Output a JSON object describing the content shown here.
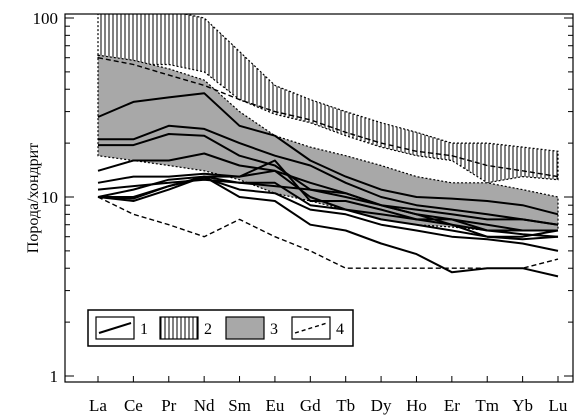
{
  "chart_data": {
    "type": "line",
    "ylabel": "Порода/хондрит",
    "x_categories": [
      "La",
      "Ce",
      "Pr",
      "Nd",
      "Sm",
      "Eu",
      "Gd",
      "Tb",
      "Dy",
      "Ho",
      "Er",
      "Tm",
      "Yb",
      "Lu"
    ],
    "y_scale": "log",
    "ylim": [
      1,
      100
    ],
    "y_ticks": [
      "1",
      "10",
      "100"
    ],
    "series": [
      {
        "legend_key": "1",
        "style": "solid",
        "values": [
          28,
          34,
          36,
          38,
          25,
          22,
          16,
          13,
          11,
          10,
          9.8,
          9.5,
          9,
          8
        ]
      },
      {
        "legend_key": "1",
        "style": "solid",
        "values": [
          21,
          21,
          25,
          24,
          20,
          17,
          15,
          12,
          10,
          9,
          8.5,
          8,
          7.5,
          7
        ]
      },
      {
        "legend_key": "1",
        "style": "solid",
        "values": [
          19.5,
          19.5,
          22.5,
          22,
          17,
          15,
          11,
          10,
          9,
          8.5,
          8,
          7.5,
          7.5,
          7
        ]
      },
      {
        "legend_key": "1",
        "style": "solid",
        "values": [
          14,
          16,
          16,
          17.5,
          15,
          14,
          12,
          10.5,
          9,
          8,
          7.5,
          7,
          6.5,
          6.5
        ]
      },
      {
        "legend_key": "1",
        "style": "solid",
        "values": [
          12,
          13,
          13,
          13.5,
          13,
          14,
          10,
          8.5,
          8,
          7.5,
          7.5,
          6.5,
          6.5,
          6.5
        ]
      },
      {
        "legend_key": "1",
        "style": "solid",
        "values": [
          11,
          11.5,
          12,
          12.5,
          12,
          11.5,
          11,
          10.5,
          9,
          8,
          7,
          6.5,
          6.2,
          6
        ]
      },
      {
        "legend_key": "1",
        "style": "solid",
        "values": [
          10,
          11,
          12.5,
          13,
          13,
          16,
          9.5,
          9.5,
          8.5,
          7.5,
          7,
          6,
          6,
          6.5
        ]
      },
      {
        "legend_key": "1",
        "style": "solid",
        "values": [
          10,
          10,
          11.5,
          13,
          12,
          12,
          9,
          8.5,
          7.5,
          7,
          6.5,
          6,
          5.8,
          6
        ]
      },
      {
        "legend_key": "1",
        "style": "solid",
        "values": [
          10,
          9.8,
          11.5,
          12.8,
          11,
          10.5,
          8.5,
          8,
          7,
          6.5,
          6,
          5.8,
          5.5,
          5
        ]
      },
      {
        "legend_key": "1",
        "style": "solid",
        "values": [
          10,
          9.5,
          11,
          13,
          10,
          9.5,
          7,
          6.5,
          5.5,
          4.8,
          3.8,
          4,
          4,
          3.6
        ]
      },
      {
        "legend_key": "4",
        "style": "dashed",
        "values": [
          10,
          8,
          7,
          6,
          7.5,
          6,
          5,
          4,
          4,
          4,
          4,
          4,
          4,
          4.5
        ]
      },
      {
        "legend_key": "4",
        "style": "dashed",
        "values": [
          60,
          55,
          48,
          42,
          35,
          30,
          27,
          23,
          20,
          18,
          17,
          15,
          14,
          13
        ]
      }
    ],
    "legend": [
      {
        "key": "1",
        "label": "1"
      },
      {
        "key": "2",
        "label": "2"
      },
      {
        "key": "3",
        "label": "3"
      },
      {
        "key": "4",
        "label": "4"
      }
    ],
    "legend_position": "bottom-left",
    "bands": [
      {
        "legend_key": "2",
        "fill": "vertical-hatch",
        "upper": [
          110,
          110,
          110,
          100,
          65,
          42,
          35,
          30,
          26,
          23,
          20,
          20,
          19,
          18
        ],
        "lower": [
          60,
          55,
          55,
          50,
          35,
          29,
          26,
          22,
          19,
          17,
          16,
          12,
          13,
          12.5
        ]
      },
      {
        "legend_key": "3",
        "fill": "#a8a8a8",
        "upper": [
          62,
          58,
          52,
          45,
          30,
          22,
          19,
          17,
          15,
          13,
          12,
          12,
          11,
          10
        ],
        "lower": [
          17,
          16,
          15,
          14,
          12.5,
          10.5,
          9.5,
          8.5,
          7.5,
          7,
          6.8,
          6.5,
          6.5,
          6.5
        ]
      }
    ]
  }
}
